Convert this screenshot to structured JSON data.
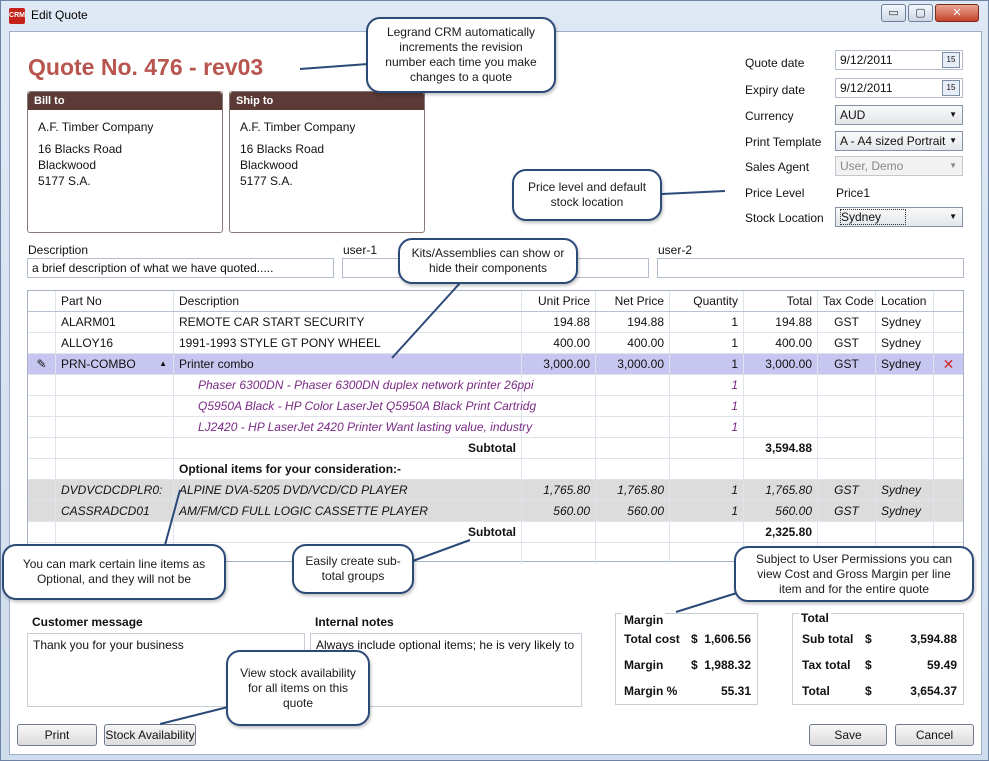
{
  "window": {
    "title": "Edit Quote",
    "icon": "crm-app-icon",
    "icon_text": "CRM",
    "min_label": "▭",
    "max_label": "▢",
    "close_label": "✕"
  },
  "quote_title": "Quote No. 476 - rev03",
  "bill_to": {
    "header": "Bill to",
    "company": "A.F. Timber Company",
    "street": "16 Blacks Road",
    "city": "Blackwood",
    "postcode": "5177 S.A."
  },
  "ship_to": {
    "header": "Ship to",
    "company": "A.F. Timber Company",
    "street": "16 Blacks Road",
    "city": "Blackwood",
    "postcode": "5177 S.A."
  },
  "details": {
    "quote_date_label": "Quote date",
    "quote_date": "9/12/2011",
    "expiry_date_label": "Expiry date",
    "expiry_date": "9/12/2011",
    "currency_label": "Currency",
    "currency": "AUD",
    "print_template_label": "Print Template",
    "print_template": "A - A4 sized Portrait",
    "sales_agent_label": "Sales Agent",
    "sales_agent": "User, Demo",
    "price_level_label": "Price Level",
    "price_level": "Price1",
    "stock_location_label": "Stock Location",
    "stock_location": "Sydney",
    "calendar_icon_text": "15"
  },
  "description": {
    "label": "Description",
    "value": "a brief description of what we have quoted.....",
    "user1_label": "user-1",
    "user2_label": "user-2"
  },
  "grid": {
    "headers": [
      "Part No",
      "Description",
      "Unit Price",
      "Net Price",
      "Quantity",
      "Total",
      "Tax Code",
      "Location"
    ],
    "rows": [
      {
        "part": "ALARM01",
        "desc": "REMOTE CAR START SECURITY",
        "unit": "194.88",
        "net": "194.88",
        "qty": "1",
        "total": "194.88",
        "tax": "GST",
        "loc": "Sydney"
      },
      {
        "part": "ALLOY16",
        "desc": "1991-1993 STYLE GT PONY WHEEL",
        "unit": "400.00",
        "net": "400.00",
        "qty": "1",
        "total": "400.00",
        "tax": "GST",
        "loc": "Sydney"
      },
      {
        "part": "PRN-COMBO",
        "desc": "Printer combo",
        "unit": "3,000.00",
        "net": "3,000.00",
        "qty": "1",
        "total": "3,000.00",
        "tax": "GST",
        "loc": "Sydney"
      }
    ],
    "components": [
      {
        "desc": "Phaser 6300DN - Phaser 6300DN duplex network printer 26ppi",
        "qty": "1"
      },
      {
        "desc": "Q5950A Black - HP Color LaserJet Q5950A Black Print Cartridg",
        "qty": "1"
      },
      {
        "desc": "LJ2420 - HP LaserJet 2420 Printer  Want lasting value, industry",
        "qty": "1"
      }
    ],
    "subtotal_label": "Subtotal",
    "subtotal1": "3,594.88",
    "optional_heading": "Optional items for your consideration:-",
    "optional_rows": [
      {
        "part": "DVDVCDCDPLR0:",
        "desc": "ALPINE DVA-5205 DVD/VCD/CD PLAYER",
        "unit": "1,765.80",
        "net": "1,765.80",
        "qty": "1",
        "total": "1,765.80",
        "tax": "GST",
        "loc": "Sydney"
      },
      {
        "part": "CASSRADCD01",
        "desc": "AM/FM/CD FULL LOGIC CASSETTE PLAYER",
        "unit": "560.00",
        "net": "560.00",
        "qty": "1",
        "total": "560.00",
        "tax": "GST",
        "loc": "Sydney"
      }
    ],
    "subtotal2": "2,325.80",
    "expand_glyph": "▲",
    "delete_glyph": "✕"
  },
  "customer_message": {
    "label": "Customer message",
    "value": "Thank you for your business"
  },
  "internal_notes": {
    "label": "Internal notes",
    "value": "Always include optional items; he is very likely to"
  },
  "margin": {
    "label": "Margin",
    "total_cost_label": "Total cost",
    "total_cost_cur": "$",
    "total_cost": "1,606.56",
    "margin_label": "Margin",
    "margin_cur": "$",
    "margin_value": "1,988.32",
    "margin_pct_label": "Margin %",
    "margin_pct": "55.31"
  },
  "totals": {
    "label": "Total",
    "sub_label": "Sub total",
    "sub_cur": "$",
    "sub": "3,594.88",
    "tax_label": "Tax total",
    "tax_cur": "$",
    "tax": "59.49",
    "total_label": "Total",
    "total_cur": "$",
    "total": "3,654.37"
  },
  "buttons": {
    "print": "Print",
    "stock": "Stock Availability",
    "save": "Save",
    "cancel": "Cancel"
  },
  "callouts": {
    "revision": "Legrand CRM automatically increments the revision number each time you make changes to a quote",
    "price_level": "Price level and default stock location",
    "kits": "Kits/Assemblies can show or hide their components",
    "optional": "You can mark certain line items as Optional, and they will not be",
    "subtotal": "Easily create sub-total groups",
    "permissions": "Subject to User Permissions you can view Cost and Gross Margin per line item and for the entire quote",
    "stock": "View stock availability for all items on this quote"
  }
}
